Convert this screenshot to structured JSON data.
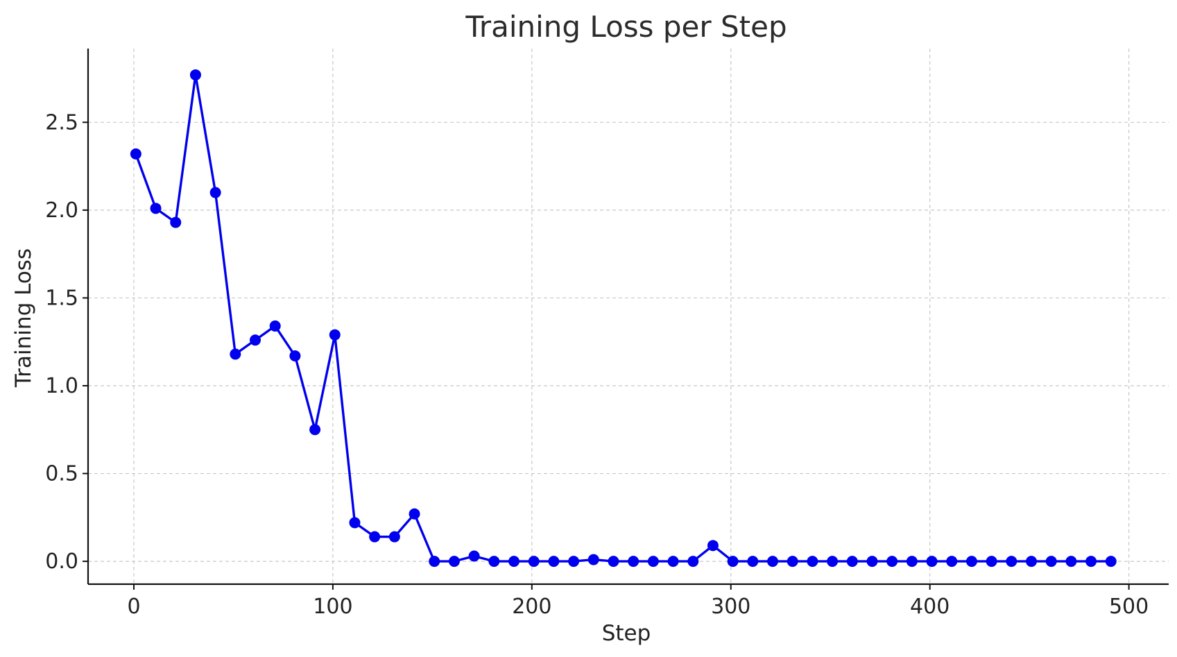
{
  "chart_data": {
    "type": "line",
    "title": "Training Loss per Step",
    "xlabel": "Step",
    "ylabel": "Training Loss",
    "xlim": [
      -23,
      520
    ],
    "ylim": [
      -0.13,
      2.92
    ],
    "xticks": [
      0,
      100,
      200,
      300,
      400,
      500
    ],
    "yticks": [
      0.0,
      0.5,
      1.0,
      1.5,
      2.0,
      2.5
    ],
    "xtick_labels": [
      "0",
      "100",
      "200",
      "300",
      "400",
      "500"
    ],
    "ytick_labels": [
      "0.0",
      "0.5",
      "1.0",
      "1.5",
      "2.0",
      "2.5"
    ],
    "grid": true,
    "series": [
      {
        "color": "#0000ee",
        "marker": "circle",
        "x": [
          1,
          11,
          21,
          31,
          41,
          51,
          61,
          71,
          81,
          91,
          101,
          111,
          121,
          131,
          141,
          151,
          161,
          171,
          181,
          191,
          201,
          211,
          221,
          231,
          241,
          251,
          261,
          271,
          281,
          291,
          301,
          311,
          321,
          331,
          341,
          351,
          361,
          371,
          381,
          391,
          401,
          411,
          421,
          431,
          441,
          451,
          461,
          471,
          481,
          491
        ],
        "y": [
          2.32,
          2.01,
          1.93,
          2.77,
          2.1,
          1.18,
          1.26,
          1.34,
          1.17,
          0.75,
          1.29,
          0.22,
          0.14,
          0.14,
          0.27,
          0.0,
          0.0,
          0.03,
          0.0,
          0.0,
          0.0,
          0.0,
          0.0,
          0.01,
          0.0,
          0.0,
          0.0,
          0.0,
          0.0,
          0.09,
          0.0,
          0.0,
          0.0,
          0.0,
          0.0,
          0.0,
          0.0,
          0.0,
          0.0,
          0.0,
          0.0,
          0.0,
          0.0,
          0.0,
          0.0,
          0.0,
          0.0,
          0.0,
          0.0,
          0.0
        ]
      }
    ]
  }
}
